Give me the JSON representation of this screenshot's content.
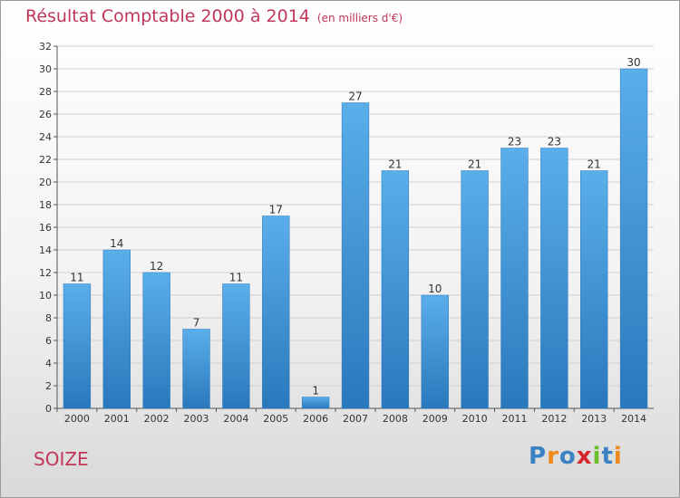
{
  "title": "Résultat Comptable 2000 à 2014",
  "subtitle": "(en milliers d'€)",
  "commune": "SOIZE",
  "logo": {
    "text": "Proxiti",
    "letters": [
      {
        "ch": "P",
        "color": "#3b82c4"
      },
      {
        "ch": "r",
        "color": "#f08a1c"
      },
      {
        "ch": "o",
        "color": "#3b82c4"
      },
      {
        "ch": "x",
        "color": "#d8262f"
      },
      {
        "ch": "i",
        "color": "#6cbf2a"
      },
      {
        "ch": "t",
        "color": "#3b82c4"
      },
      {
        "ch": "i",
        "color": "#f08a1c"
      }
    ]
  },
  "chart_data": {
    "type": "bar",
    "categories": [
      "2000",
      "2001",
      "2002",
      "2003",
      "2004",
      "2005",
      "2006",
      "2007",
      "2008",
      "2009",
      "2010",
      "2011",
      "2012",
      "2013",
      "2014"
    ],
    "values": [
      11,
      14,
      12,
      7,
      11,
      17,
      1,
      27,
      21,
      10,
      21,
      23,
      23,
      21,
      30
    ],
    "ylim": [
      0,
      32
    ],
    "yticks": [
      0,
      2,
      4,
      6,
      8,
      10,
      12,
      14,
      16,
      18,
      20,
      22,
      24,
      26,
      28,
      30,
      32
    ],
    "grid": true,
    "bar_color": "#3f96d8"
  }
}
